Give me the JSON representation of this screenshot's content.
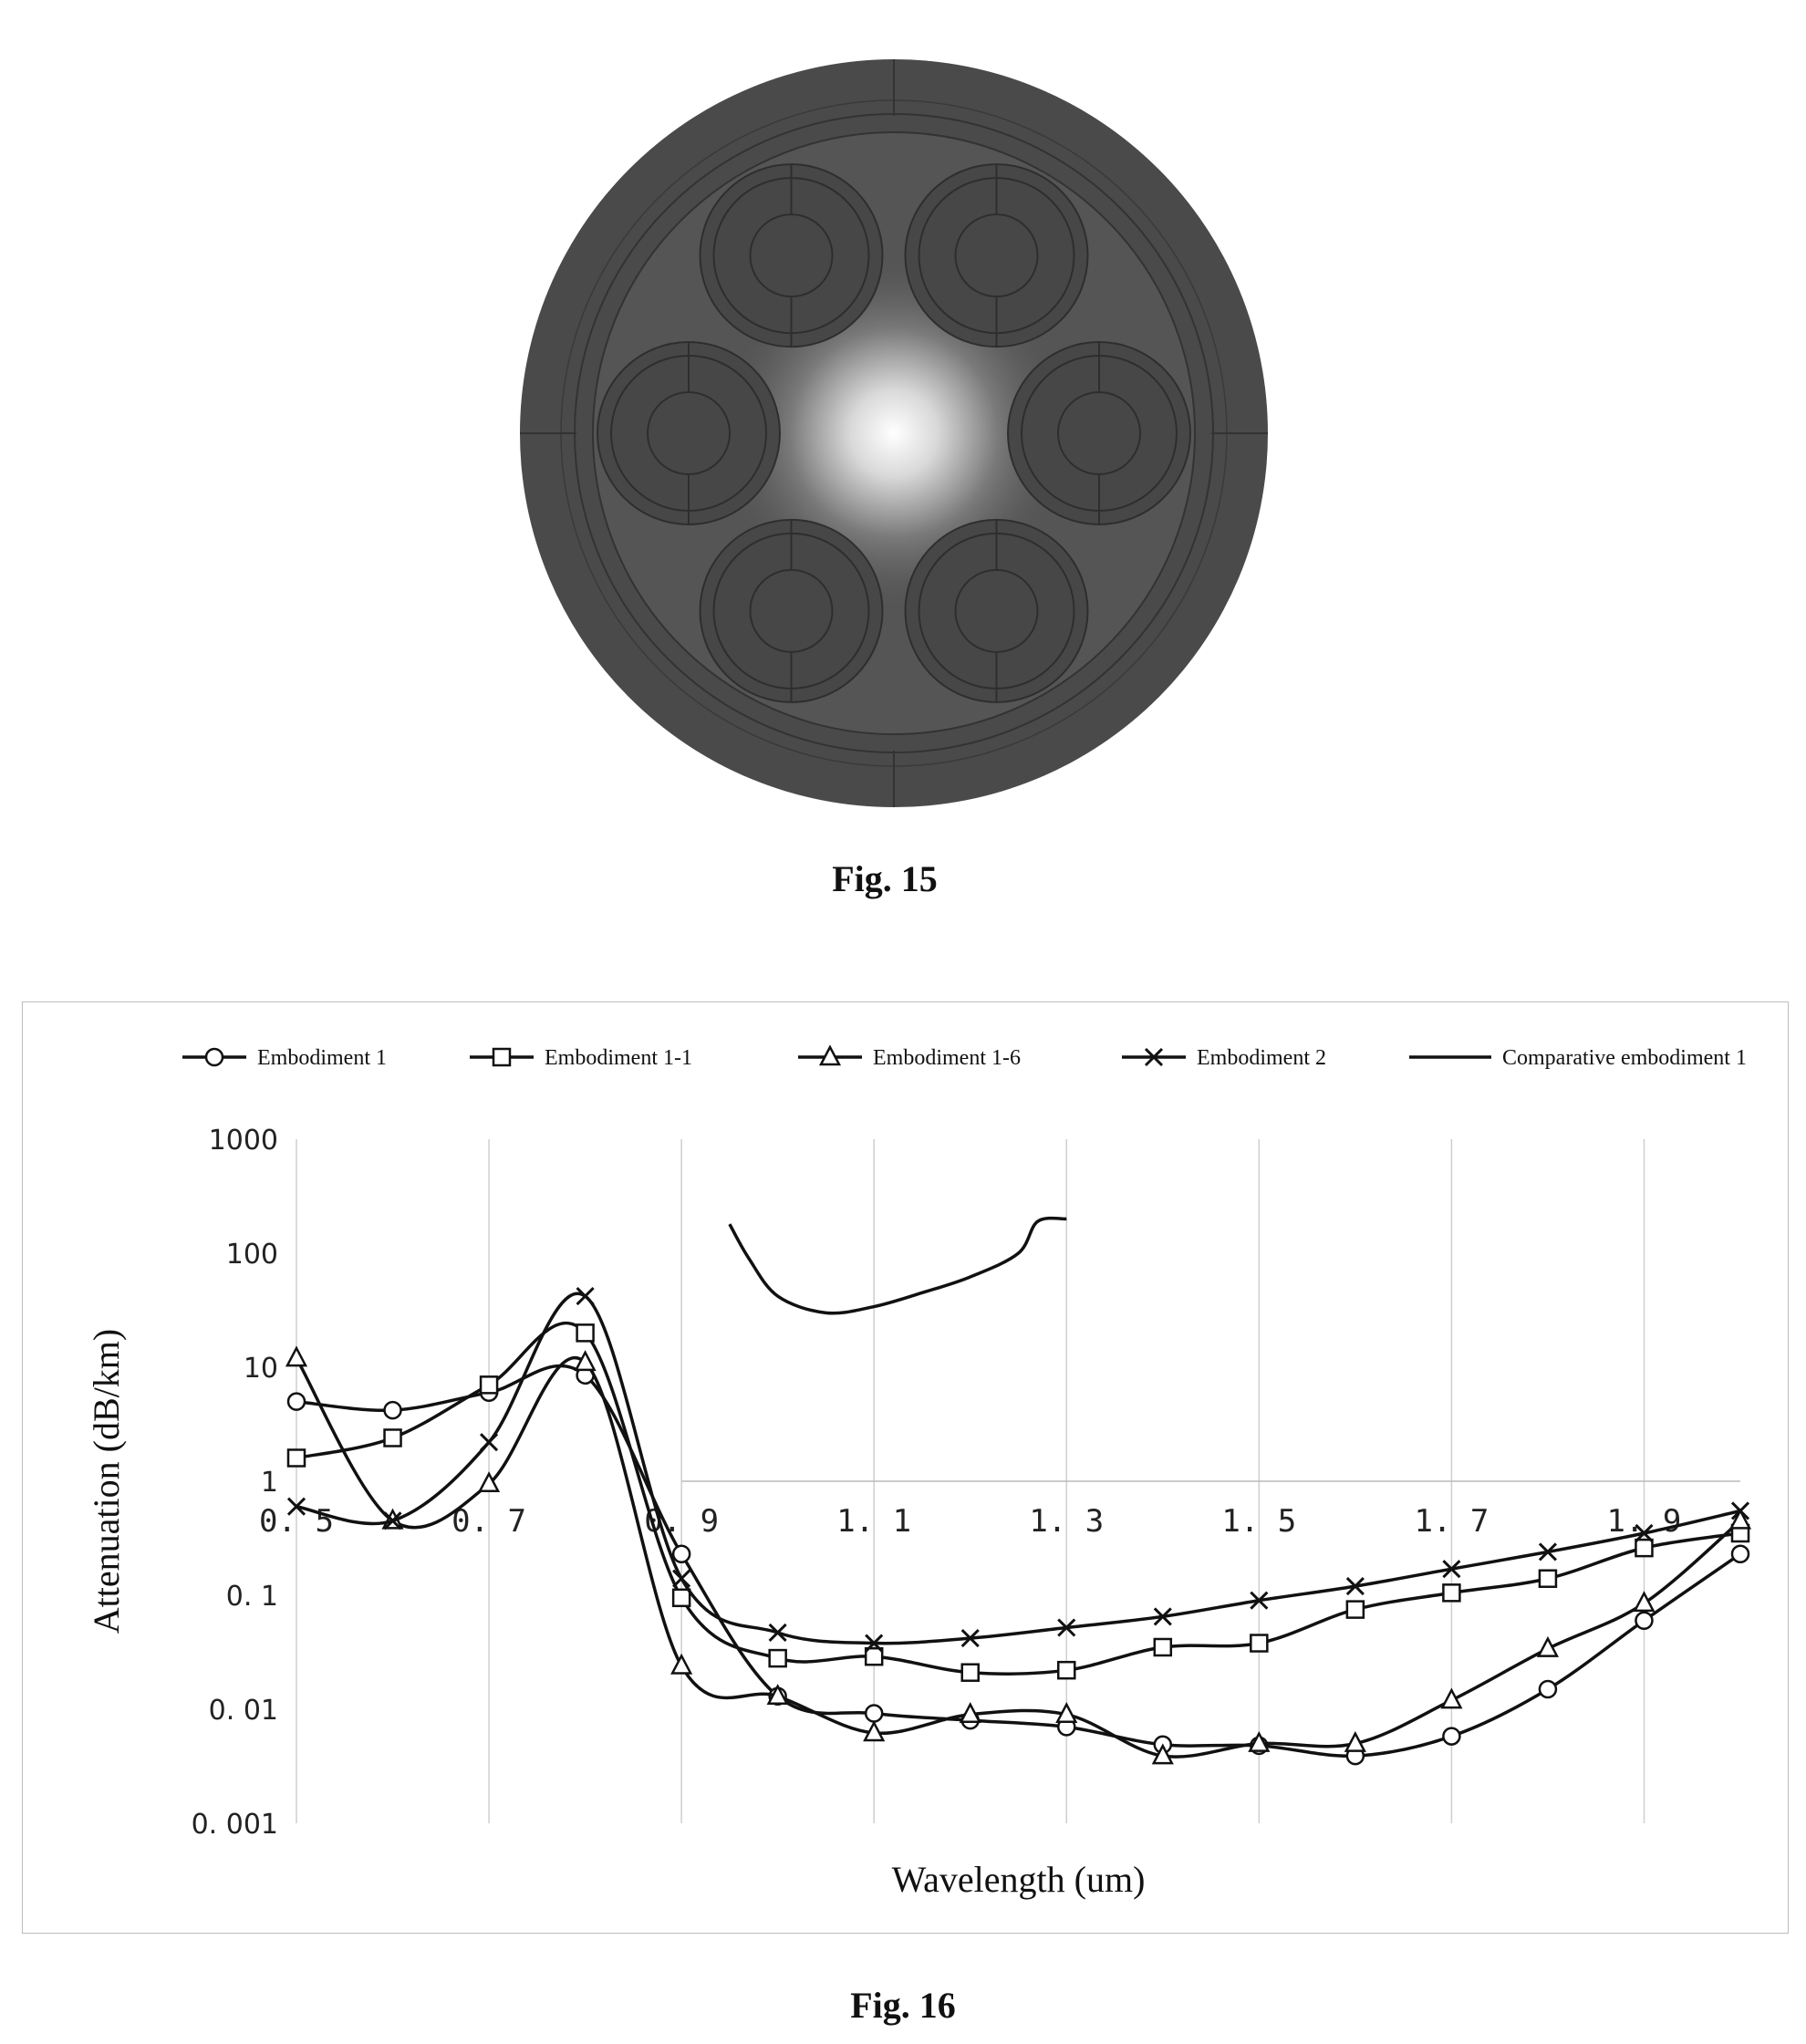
{
  "fig15": {
    "caption": "Fig. 15"
  },
  "fig16": {
    "caption": "Fig. 16"
  },
  "chart_data": {
    "type": "line",
    "title": "",
    "xlabel": "Wavelength (um)",
    "ylabel": "Attenuation (dB/km)",
    "yscale": "log",
    "ylim": [
      0.001,
      1000
    ],
    "xlim": [
      0.5,
      2.0
    ],
    "x_ticks": [
      "0. 5",
      "0. 7",
      "0. 9",
      "1. 1",
      "1. 3",
      "1. 5",
      "1. 7",
      "1. 9"
    ],
    "x_tick_values": [
      0.5,
      0.7,
      0.9,
      1.1,
      1.3,
      1.5,
      1.7,
      1.9
    ],
    "y_ticks": [
      "1000",
      "100",
      "10",
      "1",
      "0. 1",
      "0. 01",
      "0. 001"
    ],
    "y_tick_values": [
      1000,
      100,
      10,
      1,
      0.1,
      0.01,
      0.001
    ],
    "legend_position": "top",
    "grid": "vertical",
    "series": [
      {
        "name": "Embodiment 1",
        "marker": "circle",
        "x": [
          0.5,
          0.6,
          0.7,
          0.8,
          0.9,
          1.0,
          1.1,
          1.2,
          1.3,
          1.4,
          1.5,
          1.6,
          1.7,
          1.8,
          1.9,
          2.0
        ],
        "y": [
          5.0,
          4.2,
          6.0,
          8.5,
          0.23,
          0.013,
          0.0092,
          0.008,
          0.007,
          0.0049,
          0.0048,
          0.0039,
          0.0058,
          0.015,
          0.06,
          0.23
        ]
      },
      {
        "name": "Embodiment 1-1",
        "marker": "square",
        "x": [
          0.5,
          0.6,
          0.7,
          0.8,
          0.9,
          1.0,
          1.1,
          1.2,
          1.3,
          1.4,
          1.5,
          1.6,
          1.7,
          1.8,
          1.9,
          2.0
        ],
        "y": [
          1.6,
          2.4,
          7.0,
          20.0,
          0.095,
          0.028,
          0.029,
          0.021,
          0.022,
          0.035,
          0.038,
          0.075,
          0.105,
          0.14,
          0.26,
          0.35
        ]
      },
      {
        "name": "Embodiment 1-6",
        "marker": "triangle",
        "x": [
          0.5,
          0.6,
          0.7,
          0.8,
          0.9,
          1.0,
          1.1,
          1.2,
          1.3,
          1.4,
          1.5,
          1.6,
          1.7,
          1.8,
          1.9,
          2.0
        ],
        "y": [
          12.0,
          0.45,
          0.95,
          11.0,
          0.024,
          0.013,
          0.0062,
          0.009,
          0.009,
          0.0039,
          0.005,
          0.005,
          0.012,
          0.034,
          0.085,
          0.45
        ]
      },
      {
        "name": "Embodiment 2",
        "marker": "cross",
        "x": [
          0.5,
          0.6,
          0.7,
          0.8,
          0.9,
          1.0,
          1.1,
          1.2,
          1.3,
          1.4,
          1.5,
          1.6,
          1.7,
          1.8,
          1.9,
          2.0
        ],
        "y": [
          0.6,
          0.45,
          2.2,
          42.0,
          0.14,
          0.047,
          0.038,
          0.042,
          0.052,
          0.065,
          0.09,
          0.12,
          0.17,
          0.24,
          0.35,
          0.55
        ]
      },
      {
        "name": "Comparative embodiment 1",
        "marker": "none",
        "x": [
          0.95,
          0.97,
          1.0,
          1.05,
          1.1,
          1.15,
          1.2,
          1.25,
          1.27,
          1.3
        ],
        "y": [
          180,
          90,
          42,
          30,
          34,
          45,
          62,
          100,
          190,
          200
        ]
      }
    ]
  }
}
